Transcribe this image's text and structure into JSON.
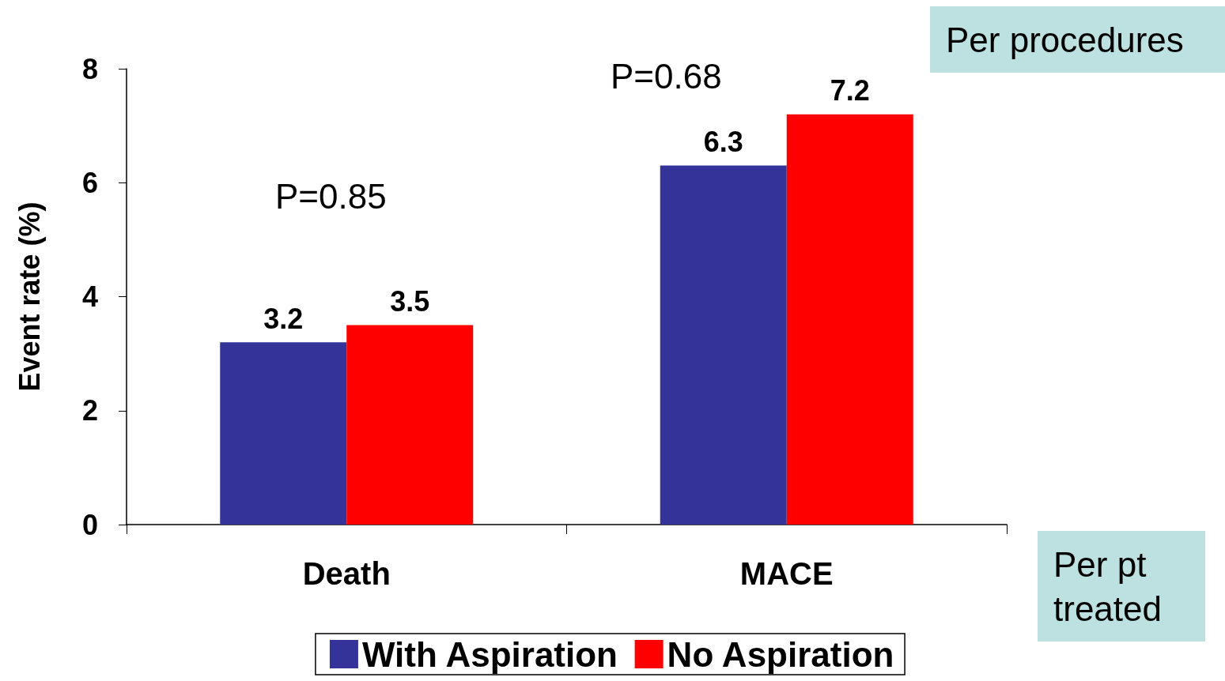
{
  "chart_data": {
    "type": "bar",
    "ylabel": "Event rate (%)",
    "categories": [
      "Death",
      "MACE"
    ],
    "series": [
      {
        "name": "With Aspiration",
        "color": "#333399",
        "values": [
          3.2,
          6.3
        ]
      },
      {
        "name": "No Aspiration",
        "color": "#ff0000",
        "values": [
          3.5,
          7.2
        ]
      }
    ],
    "ylim": [
      0,
      8
    ],
    "yticks": [
      0,
      2,
      4,
      6,
      8
    ],
    "grid": false,
    "legend": "bottom",
    "data_labels": true,
    "annotations": [
      "P=0.85",
      "P=0.68",
      "Per procedures",
      "Per pt treated"
    ]
  }
}
